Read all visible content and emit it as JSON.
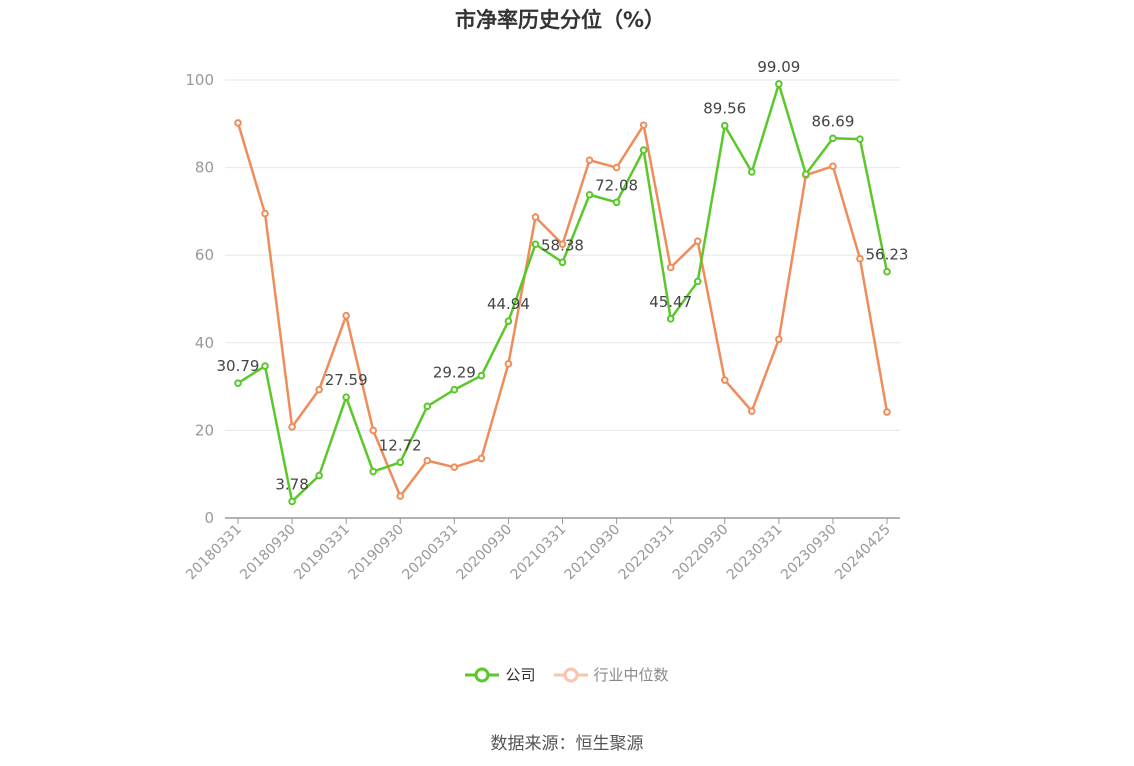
{
  "chart_data": {
    "type": "line",
    "title": "市净率历史分位（%）",
    "xlabel": "",
    "ylabel": "",
    "ylim": [
      0,
      100
    ],
    "y_ticks": [
      0,
      20,
      40,
      60,
      80,
      100
    ],
    "x_tick_labels": [
      "20180331",
      "20180930",
      "20190331",
      "20190930",
      "20200331",
      "20200930",
      "20210331",
      "20210930",
      "20220331",
      "20220930",
      "20230331",
      "20230930",
      "20240425"
    ],
    "x": [
      "20180331",
      "20180630",
      "20180930",
      "20181231",
      "20190331",
      "20190630",
      "20190930",
      "20191231",
      "20200331",
      "20200630",
      "20200930",
      "20201231",
      "20210331",
      "20210630",
      "20210930",
      "20211231",
      "20220331",
      "20220630",
      "20220930",
      "20221231",
      "20230331",
      "20230630",
      "20230930",
      "20231231",
      "20240425"
    ],
    "series": [
      {
        "name": "公司",
        "color": "#5ac82a",
        "values": [
          30.79,
          34.7,
          3.78,
          9.7,
          27.59,
          10.6,
          12.72,
          25.5,
          29.29,
          32.5,
          44.94,
          62.5,
          58.38,
          73.8,
          72.08,
          84.0,
          45.47,
          54.0,
          89.56,
          79.0,
          99.09,
          78.5,
          86.69,
          86.5,
          56.23
        ],
        "labels": [
          "30.79",
          "",
          "3.78",
          "",
          "27.59",
          "",
          "12.72",
          "",
          "29.29",
          "",
          "44.94",
          "",
          "58.38",
          "",
          "72.08",
          "",
          "45.47",
          "",
          "89.56",
          "",
          "99.09",
          "",
          "86.69",
          "",
          "56.23"
        ]
      },
      {
        "name": "行业中位数",
        "color": "#f08c5a",
        "values": [
          90.2,
          69.5,
          20.8,
          29.3,
          46.2,
          20.0,
          5.0,
          13.1,
          11.6,
          13.6,
          35.2,
          68.7,
          62.5,
          81.7,
          80.0,
          89.7,
          57.2,
          63.2,
          31.5,
          24.4,
          40.8,
          78.3,
          80.3,
          59.2,
          24.2
        ],
        "labels": []
      }
    ],
    "grid": true,
    "legend_position": "bottom"
  },
  "legend": {
    "items": [
      "公司",
      "行业中位数"
    ]
  },
  "source": "数据来源：恒生聚源"
}
